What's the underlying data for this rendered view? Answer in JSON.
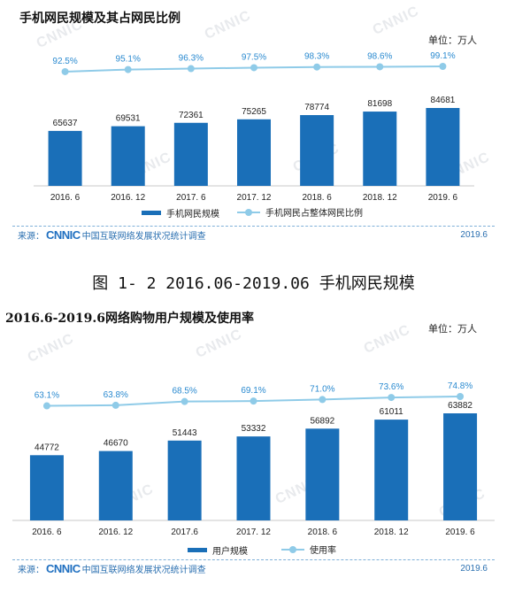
{
  "caption": "图 1- 2 2016.06-2019.06 手机网民规模",
  "charts": [
    {
      "title": "手机网民规模及其占网民比例",
      "unit": "单位：万人",
      "legend_bar": "手机网民规模",
      "legend_line": "手机网民占整体网民比例",
      "source_prefix": "来源：",
      "source_logo": "CNNIC",
      "source_text": "中国互联网络发展状况统计调查",
      "year": "2019.6"
    },
    {
      "title": "2016.6-2019.6网络购物用户规模及使用率",
      "unit": "单位：万人",
      "legend_bar": "用户规模",
      "legend_line": "使用率",
      "source_prefix": "来源：",
      "source_logo": "CNNIC",
      "source_text": "中国互联网络发展状况统计调查",
      "year": "2019.6"
    }
  ],
  "colors": {
    "bar": "#1a6fb8",
    "line": "#8fcbe8",
    "rate_text": "#2a8ad0",
    "source": "#2a6fb0"
  },
  "chart_data": [
    {
      "type": "bar",
      "title": "手机网民规模及其占网民比例",
      "categories": [
        "2016. 6",
        "2016. 12",
        "2017. 6",
        "2017. 12",
        "2018. 6",
        "2018. 12",
        "2019. 6"
      ],
      "series": [
        {
          "name": "手机网民规模",
          "type": "bar",
          "values": [
            65637,
            69531,
            72361,
            75265,
            78774,
            81698,
            84681
          ]
        },
        {
          "name": "手机网民占整体网民比例",
          "type": "line",
          "values": [
            92.5,
            95.1,
            96.3,
            97.5,
            98.3,
            98.6,
            99.1
          ],
          "labels": [
            "92.5%",
            "95.1%",
            "96.3%",
            "97.5%",
            "98.3%",
            "98.6%",
            "99.1%"
          ]
        }
      ],
      "legend": "bottom"
    },
    {
      "type": "bar",
      "title": "2016.6-2019.6网络购物用户规模及使用率",
      "categories": [
        "2016. 6",
        "2016. 12",
        "2017.6",
        "2017. 12",
        "2018. 6",
        "2018. 12",
        "2019. 6"
      ],
      "series": [
        {
          "name": "用户规模",
          "type": "bar",
          "values": [
            44772,
            46670,
            51443,
            53332,
            56892,
            61011,
            63882
          ]
        },
        {
          "name": "使用率",
          "type": "line",
          "values": [
            63.1,
            63.8,
            68.5,
            69.1,
            71.0,
            73.6,
            74.8
          ],
          "labels": [
            "63.1%",
            "63.8%",
            "68.5%",
            "69.1%",
            "71.0%",
            "73.6%",
            "74.8%"
          ]
        }
      ],
      "legend": "bottom"
    }
  ]
}
